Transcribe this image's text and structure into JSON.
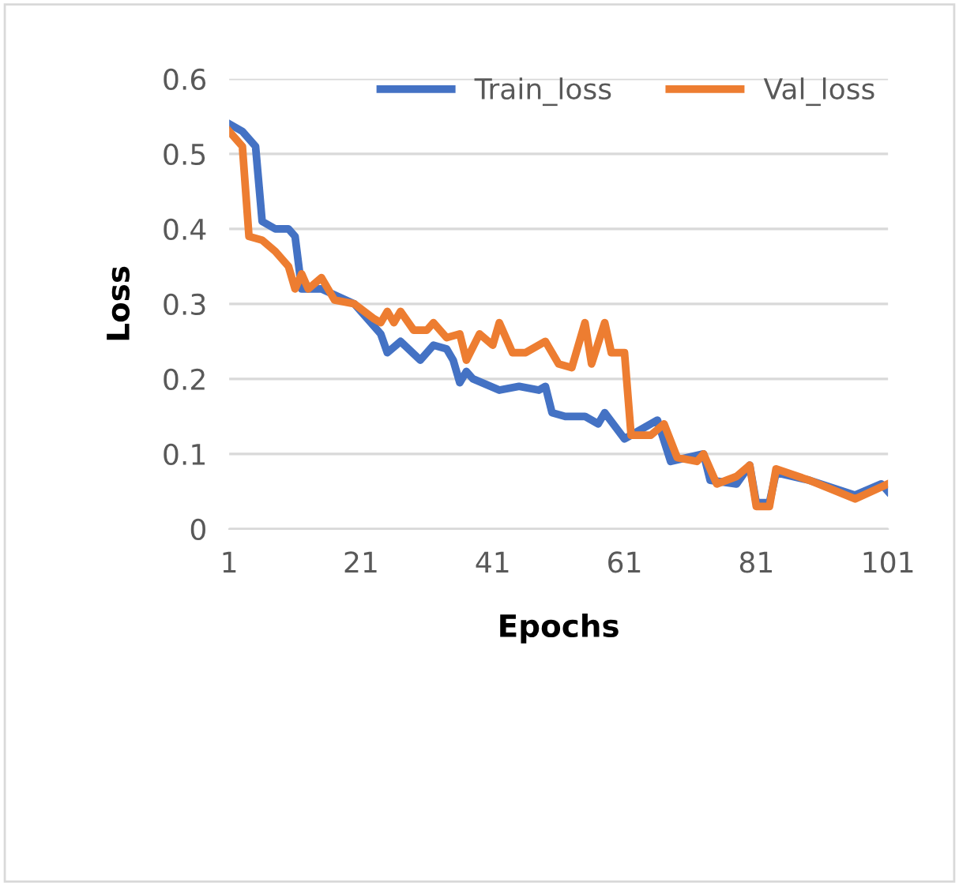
{
  "chart_data": {
    "type": "line",
    "xlabel": "Epochs",
    "ylabel": "Loss",
    "xlim": [
      1,
      101
    ],
    "xticks": [
      1,
      21,
      41,
      61,
      81,
      101
    ],
    "ylim": [
      0,
      0.6
    ],
    "yticks": [
      0,
      0.1,
      0.2,
      0.3,
      0.4,
      0.5,
      0.6
    ],
    "grid": "y",
    "legend": "top right",
    "marker": "none",
    "line_style": "solid",
    "series": [
      {
        "name": "Train_loss",
        "color": "#4472c4",
        "x": [
          1,
          3,
          5,
          6,
          8,
          10,
          11,
          12,
          15,
          20,
          24,
          25,
          27,
          30,
          32,
          34,
          35,
          36,
          37,
          38,
          42,
          45,
          48,
          49,
          50,
          52,
          55,
          57,
          58,
          61,
          62,
          66,
          68,
          73,
          74,
          78,
          80,
          81,
          83,
          84,
          89,
          96,
          100,
          101
        ],
        "values": [
          0.54,
          0.53,
          0.51,
          0.41,
          0.4,
          0.4,
          0.39,
          0.32,
          0.32,
          0.3,
          0.26,
          0.235,
          0.25,
          0.225,
          0.245,
          0.24,
          0.225,
          0.195,
          0.21,
          0.2,
          0.185,
          0.19,
          0.185,
          0.19,
          0.155,
          0.15,
          0.15,
          0.14,
          0.155,
          0.12,
          0.125,
          0.145,
          0.09,
          0.1,
          0.065,
          0.06,
          0.085,
          0.035,
          0.035,
          0.075,
          0.065,
          0.045,
          0.06,
          0.05
        ]
      },
      {
        "name": "Val_loss",
        "color": "#ed7d31",
        "x": [
          1,
          3,
          4,
          6,
          8,
          10,
          11,
          12,
          13,
          15,
          17,
          20,
          23,
          24,
          25,
          26,
          27,
          29,
          31,
          32,
          34,
          36,
          37,
          39,
          41,
          42,
          44,
          46,
          49,
          51,
          53,
          55,
          56,
          58,
          59,
          61,
          62,
          65,
          67,
          69,
          72,
          73,
          75,
          78,
          80,
          81,
          83,
          84,
          89,
          96,
          101
        ],
        "values": [
          0.53,
          0.51,
          0.39,
          0.385,
          0.37,
          0.35,
          0.32,
          0.34,
          0.32,
          0.335,
          0.305,
          0.3,
          0.28,
          0.275,
          0.29,
          0.275,
          0.29,
          0.265,
          0.265,
          0.275,
          0.255,
          0.26,
          0.225,
          0.26,
          0.245,
          0.275,
          0.235,
          0.235,
          0.25,
          0.22,
          0.215,
          0.275,
          0.22,
          0.275,
          0.235,
          0.235,
          0.125,
          0.125,
          0.14,
          0.095,
          0.09,
          0.1,
          0.06,
          0.07,
          0.085,
          0.03,
          0.03,
          0.08,
          0.065,
          0.04,
          0.06
        ]
      }
    ]
  }
}
